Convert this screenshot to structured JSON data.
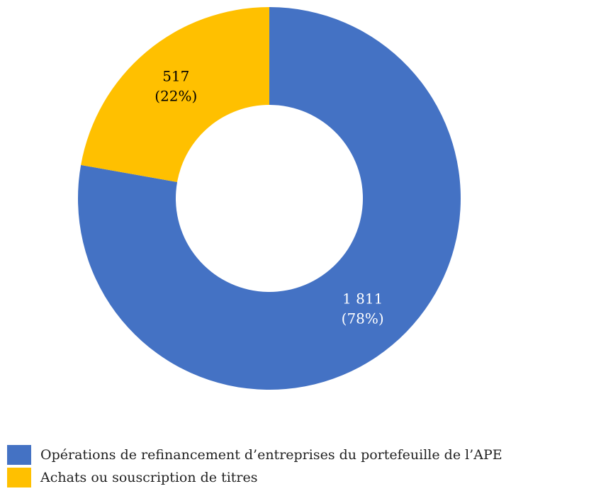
{
  "chart_data": {
    "type": "donut",
    "categories": [
      "Opérations de refinancement d’entreprises du portefeuille de l’APE",
      "Achats ou souscription de titres"
    ],
    "values": [
      1811,
      517
    ],
    "value_labels": [
      "1 811",
      "517"
    ],
    "percentages": [
      78,
      22
    ],
    "percentage_labels": [
      "(78%)",
      "(22%)"
    ],
    "colors": [
      "#4472c4",
      "#ffc000"
    ],
    "label_colors": [
      "#ffffff",
      "#000000"
    ],
    "legend": "bottom-left"
  }
}
